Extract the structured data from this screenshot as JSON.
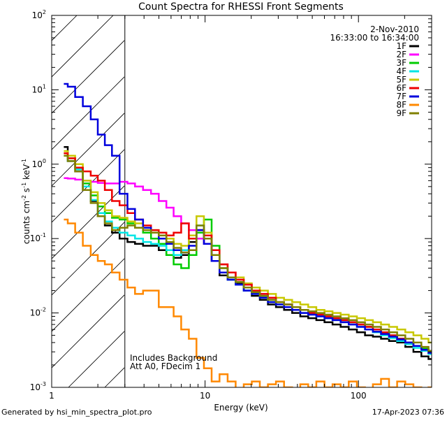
{
  "chart_data": {
    "type": "line",
    "title": "Count Spectra for RHESSI Front Segments",
    "xlabel": "Energy (keV)",
    "ylabel_parts": [
      "counts cm",
      "-2",
      " s",
      "-1",
      " keV",
      "-1"
    ],
    "xscale": "log",
    "yscale": "log",
    "xlim": [
      1,
      300
    ],
    "ylim": [
      0.001,
      100
    ],
    "x_ticks": [
      {
        "value": 1,
        "label": "1"
      },
      {
        "value": 10,
        "label": "10"
      },
      {
        "value": 100,
        "label": "100"
      }
    ],
    "y_ticks": [
      {
        "value": 0.001,
        "base": "10",
        "exp": "-3"
      },
      {
        "value": 0.01,
        "base": "10",
        "exp": "-2"
      },
      {
        "value": 0.1,
        "base": "10",
        "exp": "-1"
      },
      {
        "value": 1,
        "base": "10",
        "exp": "0"
      },
      {
        "value": 10,
        "base": "10",
        "exp": "1"
      },
      {
        "value": 100,
        "base": "10",
        "exp": "2"
      }
    ],
    "hatched_region": [
      1,
      3
    ],
    "date": "2-Nov-2010",
    "time_range": "16:33:00 to 16:34:00",
    "annotations": [
      "Includes Background",
      "Att A0, FDecim 1"
    ],
    "energy": [
      1.2,
      1.35,
      1.5,
      1.7,
      1.9,
      2.1,
      2.35,
      2.6,
      2.95,
      3.3,
      3.7,
      4.2,
      4.7,
      5.3,
      5.9,
      6.6,
      7.4,
      8.3,
      9.3,
      10.4,
      11.7,
      13.2,
      14.9,
      16.8,
      19,
      21.4,
      24.2,
      27.3,
      30.8,
      34.8,
      39.3,
      44.3,
      50,
      56.5,
      63.8,
      72,
      81.3,
      91.8,
      104,
      117,
      132,
      149,
      168,
      190,
      215,
      242,
      273,
      300
    ],
    "series": [
      {
        "name": "1F",
        "color": "#000000",
        "values": [
          1.7,
          1.1,
          0.8,
          0.45,
          0.32,
          0.2,
          0.15,
          0.12,
          0.1,
          0.09,
          0.085,
          0.08,
          0.08,
          0.07,
          0.06,
          0.055,
          0.06,
          0.09,
          0.13,
          0.085,
          0.05,
          0.032,
          0.028,
          0.025,
          0.02,
          0.017,
          0.015,
          0.013,
          0.012,
          0.011,
          0.01,
          0.009,
          0.0085,
          0.008,
          0.0075,
          0.007,
          0.0065,
          0.006,
          0.0055,
          0.005,
          0.0048,
          0.0045,
          0.0042,
          0.004,
          0.0035,
          0.003,
          0.0026,
          0.0024
        ]
      },
      {
        "name": "2F",
        "color": "#ff00ff",
        "values": [
          0.65,
          0.64,
          0.62,
          0.6,
          0.58,
          0.56,
          0.55,
          0.55,
          0.58,
          0.55,
          0.5,
          0.45,
          0.4,
          0.32,
          0.26,
          0.2,
          0.16,
          0.13,
          0.1,
          0.085,
          0.06,
          0.045,
          0.035,
          0.028,
          0.024,
          0.02,
          0.018,
          0.016,
          0.014,
          0.013,
          0.012,
          0.011,
          0.01,
          0.0095,
          0.009,
          0.0085,
          0.008,
          0.0075,
          0.007,
          0.0065,
          0.006,
          0.0055,
          0.005,
          0.0045,
          0.004,
          0.0036,
          0.0032,
          0.003
        ]
      },
      {
        "name": "3F",
        "color": "#00cc00",
        "values": [
          1.4,
          1.2,
          0.9,
          0.55,
          0.38,
          0.27,
          0.22,
          0.19,
          0.18,
          0.16,
          0.14,
          0.12,
          0.1,
          0.085,
          0.06,
          0.045,
          0.04,
          0.06,
          0.12,
          0.18,
          0.08,
          0.04,
          0.03,
          0.026,
          0.022,
          0.019,
          0.017,
          0.015,
          0.014,
          0.013,
          0.012,
          0.011,
          0.01,
          0.0095,
          0.009,
          0.0085,
          0.008,
          0.0075,
          0.007,
          0.0065,
          0.006,
          0.0055,
          0.005,
          0.0045,
          0.004,
          0.0036,
          0.0033,
          0.003
        ]
      },
      {
        "name": "4F",
        "color": "#00e5e5",
        "values": [
          1.3,
          1.1,
          0.85,
          0.5,
          0.33,
          0.22,
          0.17,
          0.14,
          0.12,
          0.11,
          0.1,
          0.09,
          0.085,
          0.08,
          0.07,
          0.06,
          0.07,
          0.1,
          0.15,
          0.1,
          0.06,
          0.035,
          0.028,
          0.024,
          0.02,
          0.018,
          0.016,
          0.014,
          0.013,
          0.012,
          0.011,
          0.01,
          0.0095,
          0.009,
          0.0085,
          0.008,
          0.0075,
          0.007,
          0.0065,
          0.006,
          0.0055,
          0.005,
          0.0046,
          0.0042,
          0.0038,
          0.0034,
          0.0031,
          0.0028
        ]
      },
      {
        "name": "5F",
        "color": "#c8c800",
        "values": [
          1.5,
          1.3,
          1.0,
          0.6,
          0.42,
          0.3,
          0.24,
          0.2,
          0.19,
          0.17,
          0.16,
          0.14,
          0.13,
          0.12,
          0.1,
          0.085,
          0.08,
          0.11,
          0.2,
          0.12,
          0.07,
          0.045,
          0.035,
          0.03,
          0.025,
          0.022,
          0.02,
          0.018,
          0.016,
          0.015,
          0.014,
          0.013,
          0.012,
          0.011,
          0.0105,
          0.01,
          0.0095,
          0.009,
          0.0085,
          0.008,
          0.0075,
          0.007,
          0.0065,
          0.006,
          0.0055,
          0.005,
          0.0045,
          0.004
        ]
      },
      {
        "name": "6F",
        "color": "#ee0000",
        "values": [
          1.4,
          1.2,
          0.9,
          0.8,
          0.7,
          0.6,
          0.45,
          0.32,
          0.28,
          0.22,
          0.18,
          0.15,
          0.13,
          0.12,
          0.11,
          0.12,
          0.16,
          0.1,
          0.13,
          0.11,
          0.07,
          0.045,
          0.035,
          0.028,
          0.024,
          0.02,
          0.018,
          0.016,
          0.014,
          0.013,
          0.012,
          0.011,
          0.01,
          0.0095,
          0.009,
          0.0085,
          0.008,
          0.0075,
          0.007,
          0.0065,
          0.006,
          0.0055,
          0.005,
          0.0045,
          0.004,
          0.0036,
          0.0032,
          0.0029
        ]
      },
      {
        "name": "7F",
        "color": "#0000dd",
        "values": [
          12,
          11,
          8,
          6,
          4,
          2.5,
          1.8,
          1.3,
          0.4,
          0.25,
          0.18,
          0.14,
          0.12,
          0.1,
          0.085,
          0.07,
          0.065,
          0.08,
          0.13,
          0.085,
          0.05,
          0.035,
          0.028,
          0.024,
          0.02,
          0.018,
          0.016,
          0.014,
          0.013,
          0.012,
          0.011,
          0.01,
          0.0095,
          0.009,
          0.0085,
          0.008,
          0.0075,
          0.007,
          0.0065,
          0.006,
          0.0056,
          0.0052,
          0.0048,
          0.0044,
          0.004,
          0.0036,
          0.0032,
          0.0029
        ]
      },
      {
        "name": "8F",
        "color": "#ff8800",
        "values": [
          0.18,
          0.16,
          0.12,
          0.08,
          0.06,
          0.05,
          0.045,
          0.035,
          0.028,
          0.022,
          0.018,
          0.02,
          0.02,
          0.012,
          0.012,
          0.009,
          0.006,
          0.0045,
          0.0025,
          0.0018,
          0.0012,
          0.0015,
          0.0012,
          0.0009,
          0.0011,
          0.0012,
          0.001,
          0.0011,
          0.0012,
          0.001,
          0.0009,
          0.0011,
          0.001,
          0.0012,
          0.001,
          0.0011,
          0.001,
          0.0012,
          0.001,
          0.0009,
          0.0011,
          0.0013,
          0.001,
          0.0012,
          0.0011,
          0.001,
          0.0009,
          0.001
        ]
      },
      {
        "name": "9F",
        "color": "#808000",
        "values": [
          1.3,
          1.1,
          0.8,
          0.45,
          0.3,
          0.2,
          0.16,
          0.13,
          0.14,
          0.15,
          0.14,
          0.13,
          0.12,
          0.11,
          0.09,
          0.075,
          0.065,
          0.07,
          0.15,
          0.1,
          0.06,
          0.04,
          0.03,
          0.026,
          0.022,
          0.019,
          0.017,
          0.015,
          0.014,
          0.013,
          0.012,
          0.011,
          0.0105,
          0.01,
          0.0095,
          0.009,
          0.0085,
          0.008,
          0.0075,
          0.007,
          0.0065,
          0.006,
          0.0055,
          0.005,
          0.0045,
          0.004,
          0.0035,
          0.0031
        ]
      }
    ]
  },
  "footer": {
    "generated_by": "Generated by hsi_min_spectra_plot.pro",
    "timestamp": "17-Apr-2023 07:36"
  }
}
